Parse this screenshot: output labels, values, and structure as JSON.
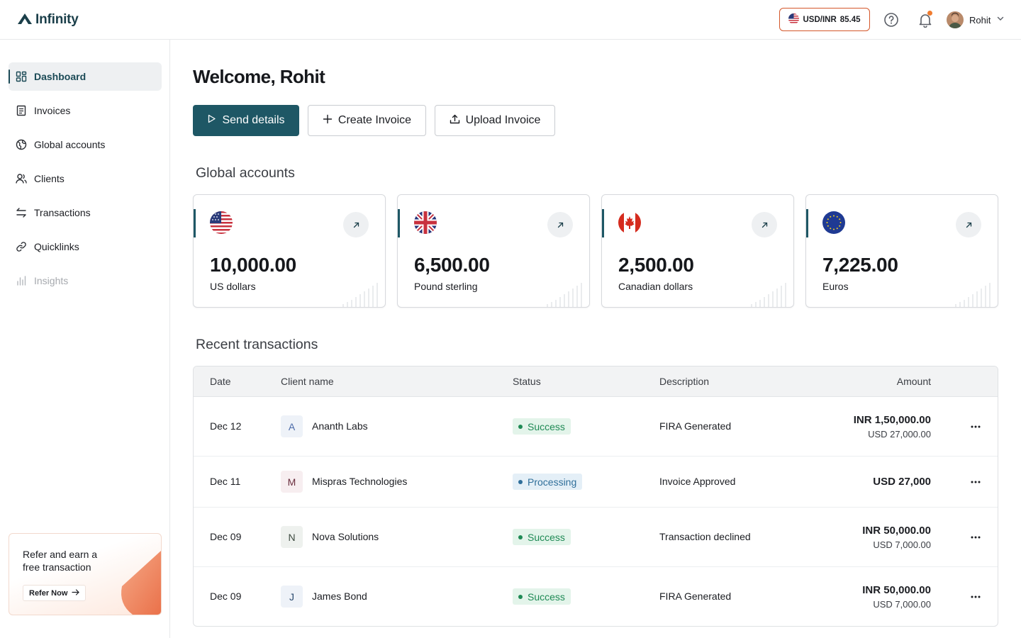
{
  "app": {
    "name": "Infinity",
    "logo_icon": "infinity-logo-icon"
  },
  "header": {
    "rate_label": "USD/INR",
    "rate_value": "85.45",
    "rate_flag": "us-flag-icon",
    "help_icon": "help-circle-icon",
    "notification_icon": "bell-icon",
    "user_name": "Rohit",
    "accent_color": "#d4572a"
  },
  "sidebar": {
    "items": [
      {
        "label": "Dashboard",
        "icon": "dashboard-icon",
        "state": "active"
      },
      {
        "label": "Invoices",
        "icon": "invoice-icon",
        "state": "normal"
      },
      {
        "label": "Global accounts",
        "icon": "globe-icon",
        "state": "normal"
      },
      {
        "label": "Clients",
        "icon": "users-icon",
        "state": "normal"
      },
      {
        "label": "Transactions",
        "icon": "transfer-arrows-icon",
        "state": "normal"
      },
      {
        "label": "Quicklinks",
        "icon": "link-icon",
        "state": "normal"
      },
      {
        "label": "Insights",
        "icon": "bar-chart-icon",
        "state": "disabled"
      }
    ],
    "refer": {
      "text": "Refer and earn a free transaction",
      "button_label": "Refer Now"
    }
  },
  "main": {
    "welcome": "Welcome, Rohit",
    "actions": {
      "send_details": "Send details",
      "create_invoice": "Create Invoice",
      "upload_invoice": "Upload Invoice"
    },
    "global_accounts_title": "Global accounts",
    "accounts": [
      {
        "amount": "10,000.00",
        "currency": "US dollars",
        "flag": "us-flag-icon"
      },
      {
        "amount": "6,500.00",
        "currency": "Pound sterling",
        "flag": "uk-flag-icon"
      },
      {
        "amount": "2,500.00",
        "currency": "Canadian dollars",
        "flag": "canada-flag-icon"
      },
      {
        "amount": "7,225.00",
        "currency": "Euros",
        "flag": "eu-flag-icon"
      }
    ],
    "recent_title": "Recent transactions",
    "table": {
      "headers": {
        "date": "Date",
        "client": "Client name",
        "status": "Status",
        "description": "Description",
        "amount": "Amount"
      },
      "rows": [
        {
          "date": "Dec 12",
          "client_initial": "A",
          "client": "Ananth Labs",
          "status": "Success",
          "description": "FIRA Generated",
          "amount": "INR 1,50,000.00",
          "amount_sub": "USD 27,000.00"
        },
        {
          "date": "Dec 11",
          "client_initial": "M",
          "client": "Mispras Technologies",
          "status": "Processing",
          "description": "Invoice Approved",
          "amount": "USD 27,000",
          "amount_sub": ""
        },
        {
          "date": "Dec 09",
          "client_initial": "N",
          "client": "Nova Solutions",
          "status": "Success",
          "description": "Transaction declined",
          "amount": "INR 50,000.00",
          "amount_sub": "USD 7,000.00"
        },
        {
          "date": "Dec 09",
          "client_initial": "J",
          "client": "James Bond",
          "status": "Success",
          "description": "FIRA Generated",
          "amount": "INR 50,000.00",
          "amount_sub": "USD 7,000.00"
        }
      ],
      "more_icon": "more-horizontal-icon"
    },
    "colors": {
      "primary": "#1e5765",
      "success_bg": "#e3f4ea",
      "success_text": "#1f8a55",
      "processing_bg": "#e4eff7",
      "processing_text": "#2f6f9a"
    }
  }
}
